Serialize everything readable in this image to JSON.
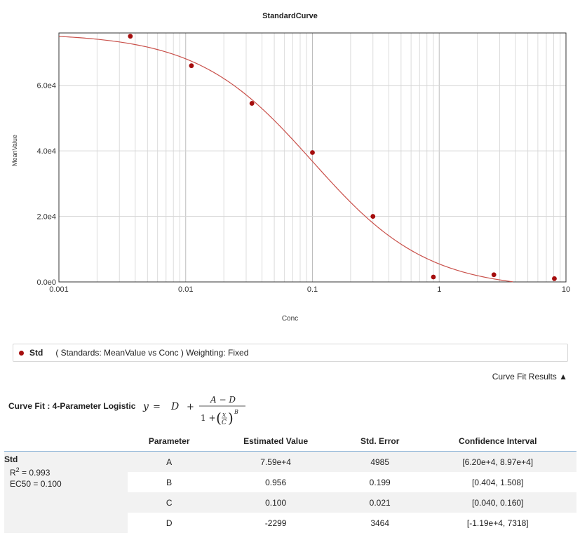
{
  "chart_data": {
    "type": "scatter",
    "title": "StandardCurve",
    "xlabel": "Conc",
    "ylabel": "MeanValue",
    "x_scale": "log",
    "xlim": [
      0.001,
      10
    ],
    "ylim": [
      0,
      76000
    ],
    "x_ticks": [
      0.001,
      0.01,
      0.1,
      1,
      10
    ],
    "x_tick_labels": [
      "0.001",
      "0.01",
      "0.1",
      "1",
      "10"
    ],
    "y_ticks": [
      0,
      20000,
      40000,
      60000
    ],
    "y_tick_labels": [
      "0.0e0",
      "2.0e4",
      "4.0e4",
      "6.0e4"
    ],
    "grid": true,
    "series": [
      {
        "name": "Std",
        "color": "#a50d0d",
        "x": [
          0.00366,
          0.0111,
          0.0333,
          0.1,
          0.3,
          0.9,
          2.7,
          8.1
        ],
        "y": [
          75000,
          66000,
          54500,
          39500,
          20000,
          1500,
          2200,
          1000
        ]
      }
    ],
    "fit_curve": {
      "model": "4PL",
      "color": "#c9504a",
      "A": 75900,
      "B": 0.956,
      "C": 0.1,
      "D": -2299
    }
  },
  "legend": {
    "name": "Std",
    "description": "( Standards: MeanValue vs Conc )  Weighting: Fixed"
  },
  "results_toggle": "Curve Fit Results ▲",
  "curve_fit": {
    "title": "Curve Fit : 4-Parameter Logistic"
  },
  "table": {
    "headers": [
      "Parameter",
      "Estimated Value",
      "Std. Error",
      "Confidence Interval"
    ],
    "group": {
      "name": "Std",
      "r2_label": "R",
      "r2_sup": "2",
      "r2_value": " = 0.993",
      "ec50": "EC50 = 0.100"
    },
    "rows": [
      {
        "param": "A",
        "value": "7.59e+4",
        "stderr": "4985",
        "ci": "[6.20e+4, 8.97e+4]"
      },
      {
        "param": "B",
        "value": "0.956",
        "stderr": "0.199",
        "ci": "[0.404, 1.508]"
      },
      {
        "param": "C",
        "value": "0.100",
        "stderr": "0.021",
        "ci": "[0.040, 0.160]"
      },
      {
        "param": "D",
        "value": "-2299",
        "stderr": "3464",
        "ci": "[-1.19e+4, 7318]"
      }
    ]
  }
}
